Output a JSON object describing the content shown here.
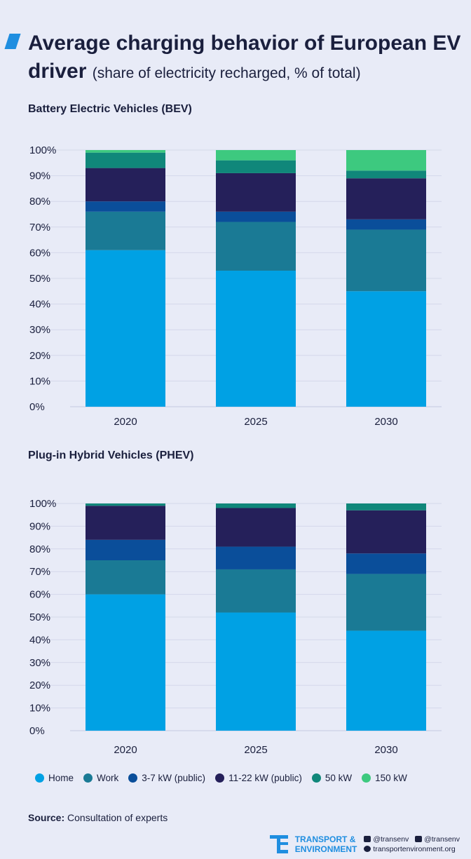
{
  "title": {
    "main": "Average charging behavior of European EV driver",
    "subtitle": "(share of electricity recharged, % of total)"
  },
  "colors": {
    "Home": "#00a1e4",
    "Work": "#1a7a95",
    "3-7 kW (public)": "#0a4e9a",
    "11-22 kW (public)": "#25205a",
    "50 kW": "#10877a",
    "150 kW": "#3dc97f",
    "text": "#1a1f3d",
    "background": "#e8ebf7",
    "accent": "#1f8ee0"
  },
  "chart_data": [
    {
      "type": "bar",
      "stacked": true,
      "title": "Battery Electric Vehicles (BEV)",
      "categories": [
        "2020",
        "2025",
        "2030"
      ],
      "yticks": [
        "0%",
        "10%",
        "20%",
        "30%",
        "40%",
        "50%",
        "60%",
        "70%",
        "80%",
        "90%",
        "100%"
      ],
      "ylim": [
        0,
        100
      ],
      "series": [
        {
          "name": "Home",
          "values": [
            61,
            53,
            45
          ]
        },
        {
          "name": "Work",
          "values": [
            15,
            19,
            24
          ]
        },
        {
          "name": "3-7 kW (public)",
          "values": [
            4,
            4,
            4
          ]
        },
        {
          "name": "11-22 kW (public)",
          "values": [
            13,
            15,
            16
          ]
        },
        {
          "name": "50 kW",
          "values": [
            6,
            5,
            3
          ]
        },
        {
          "name": "150 kW",
          "values": [
            1,
            4,
            8
          ]
        }
      ]
    },
    {
      "type": "bar",
      "stacked": true,
      "title": "Plug-in Hybrid Vehicles (PHEV)",
      "categories": [
        "2020",
        "2025",
        "2030"
      ],
      "yticks": [
        "0%",
        "10%",
        "20%",
        "30%",
        "40%",
        "50%",
        "60%",
        "70%",
        "80%",
        "90%",
        "100%"
      ],
      "ylim": [
        0,
        100
      ],
      "series": [
        {
          "name": "Home",
          "values": [
            60,
            52,
            44
          ]
        },
        {
          "name": "Work",
          "values": [
            15,
            19,
            25
          ]
        },
        {
          "name": "3-7 kW (public)",
          "values": [
            9,
            10,
            9
          ]
        },
        {
          "name": "11-22 kW (public)",
          "values": [
            15,
            17,
            19
          ]
        },
        {
          "name": "50 kW",
          "values": [
            1,
            2,
            3
          ]
        },
        {
          "name": "150 kW",
          "values": [
            0,
            0,
            0
          ]
        }
      ]
    }
  ],
  "legend": [
    {
      "label": "Home",
      "color": "#00a1e4"
    },
    {
      "label": "Work",
      "color": "#1a7a95"
    },
    {
      "label": "3-7 kW (public)",
      "color": "#0a4e9a"
    },
    {
      "label": "11-22 kW (public)",
      "color": "#25205a"
    },
    {
      "label": "50 kW",
      "color": "#10877a"
    },
    {
      "label": "150 kW",
      "color": "#3dc97f"
    }
  ],
  "source": {
    "label": "Source:",
    "text": "Consultation of experts"
  },
  "footer": {
    "org_line1": "TRANSPORT &",
    "org_line2": "ENVIRONMENT",
    "twitter": "@transenv",
    "facebook": "@transenv",
    "website": "transportenvironment.org"
  }
}
